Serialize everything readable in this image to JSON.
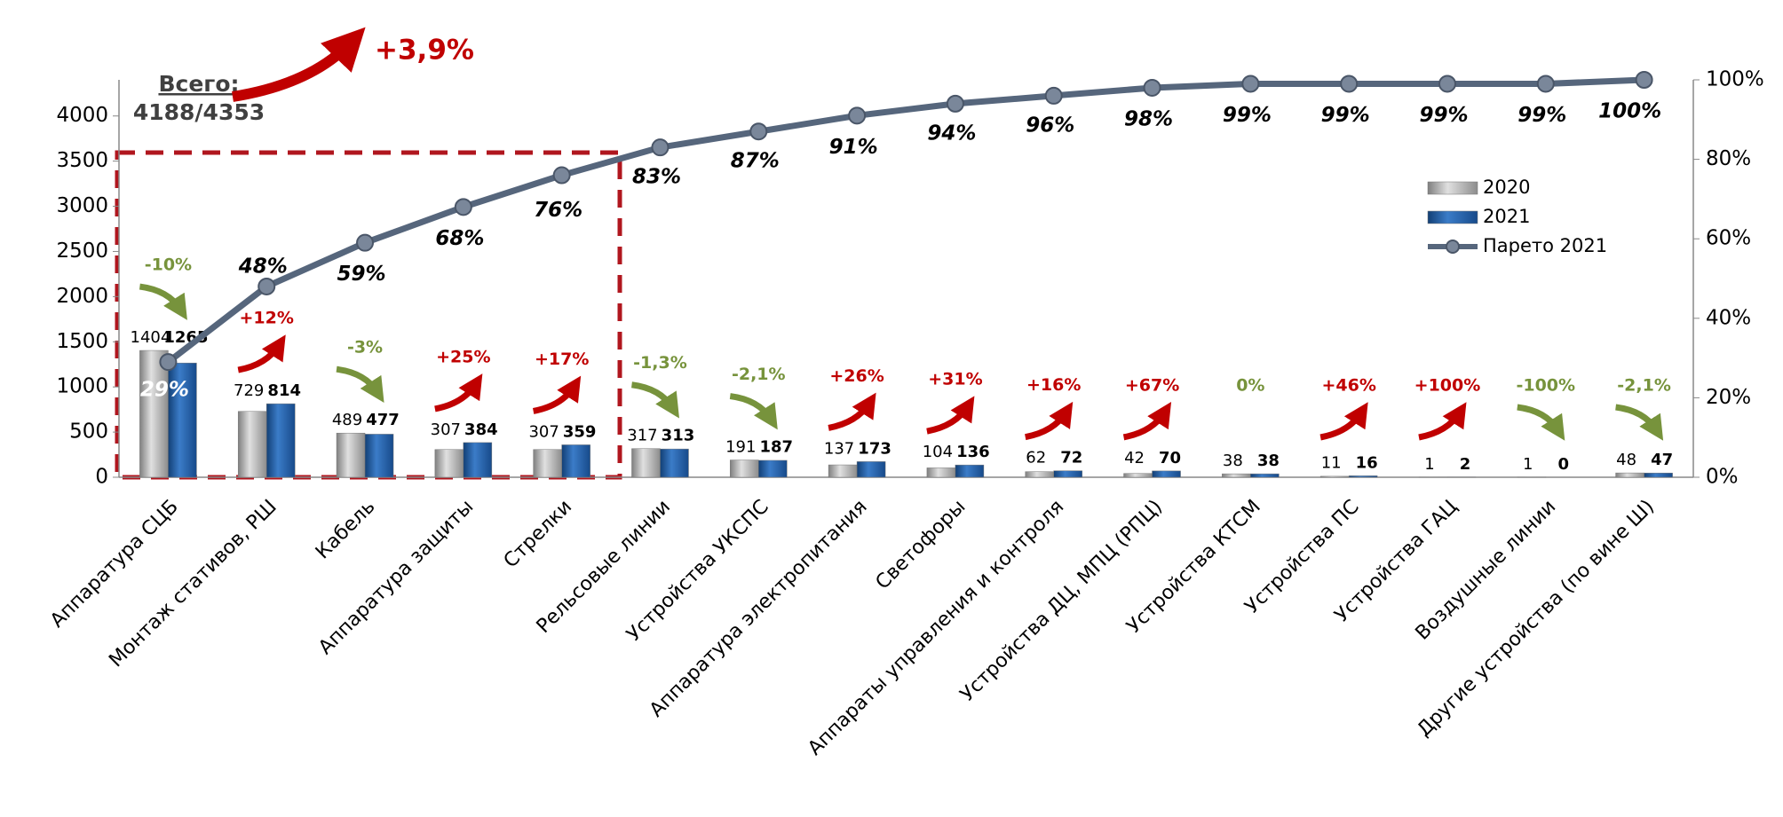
{
  "chart_data": {
    "type": "bar",
    "categories": [
      "Аппаратура СЦБ",
      "Монтаж стативов, РШ",
      "Кабель",
      "Аппаратура защиты",
      "Стрелки",
      "Рельсовые линии",
      "Устройства УКСПС",
      "Аппаратура электропитания",
      "Светофоры",
      "Аппараты управления и контроля",
      "Устройства ДЦ, МПЦ (РПЦ)",
      "Устройства КТСМ",
      "Устройства  ПС",
      "Устройства ГАЦ",
      "Воздушные линии",
      "Другие устройства (по вине Ш)"
    ],
    "series": [
      {
        "name": "2020",
        "color": "#a6a6a6",
        "values": [
          1404,
          729,
          489,
          307,
          307,
          317,
          191,
          137,
          104,
          62,
          42,
          38,
          11,
          1,
          1,
          48
        ]
      },
      {
        "name": "2021",
        "color": "#1f5fa8",
        "values": [
          1265,
          814,
          477,
          384,
          359,
          313,
          187,
          173,
          136,
          72,
          70,
          38,
          16,
          2,
          0,
          47
        ]
      },
      {
        "name": "Парето 2021",
        "type": "line",
        "axis": "y2",
        "color": "#56667c",
        "values": [
          29,
          48,
          59,
          68,
          76,
          83,
          87,
          91,
          94,
          96,
          98,
          99,
          99,
          99,
          99,
          100
        ],
        "value_labels": [
          "29%",
          "48%",
          "59%",
          "68%",
          "76%",
          "83%",
          "87%",
          "91%",
          "94%",
          "96%",
          "98%",
          "99%",
          "99%",
          "99%",
          "99%",
          "100%"
        ]
      }
    ],
    "annotations": [
      {
        "text": "-10%",
        "color": "#77933c",
        "arrow": "down"
      },
      {
        "text": "+12%",
        "color": "#c00000",
        "arrow": "up"
      },
      {
        "text": "-3%",
        "color": "#77933c",
        "arrow": "down"
      },
      {
        "text": "+25%",
        "color": "#c00000",
        "arrow": "up"
      },
      {
        "text": "+17%",
        "color": "#c00000",
        "arrow": "up"
      },
      {
        "text": "-1,3%",
        "color": "#77933c",
        "arrow": "down"
      },
      {
        "text": "-2,1%",
        "color": "#77933c",
        "arrow": "down"
      },
      {
        "text": "+26%",
        "color": "#c00000",
        "arrow": "up"
      },
      {
        "text": "+31%",
        "color": "#c00000",
        "arrow": "up"
      },
      {
        "text": "+16%",
        "color": "#c00000",
        "arrow": "up"
      },
      {
        "text": "+67%",
        "color": "#c00000",
        "arrow": "up"
      },
      {
        "text": "0%",
        "color": "#77933c",
        "arrow": null
      },
      {
        "text": "+46%",
        "color": "#c00000",
        "arrow": "up"
      },
      {
        "text": "+100%",
        "color": "#c00000",
        "arrow": "up"
      },
      {
        "text": "-100%",
        "color": "#77933c",
        "arrow": "down"
      },
      {
        "text": "-2,1%",
        "color": "#77933c",
        "arrow": "down"
      }
    ],
    "total": {
      "label": "Всего:",
      "value": "4188/4353",
      "change": "+3,9%",
      "change_color": "#c00000"
    },
    "ylim": [
      0,
      4400
    ],
    "yticks": [
      0,
      500,
      1000,
      1500,
      2000,
      2500,
      3000,
      3500,
      4000
    ],
    "y2lim": [
      0,
      100
    ],
    "y2ticks": [
      {
        "value": 0,
        "label": "0%"
      },
      {
        "value": 20,
        "label": "20%"
      },
      {
        "value": 40,
        "label": "40%"
      },
      {
        "value": 60,
        "label": "60%"
      },
      {
        "value": 80,
        "label": "80%"
      },
      {
        "value": 100,
        "label": "100%"
      }
    ],
    "legend": "right"
  }
}
